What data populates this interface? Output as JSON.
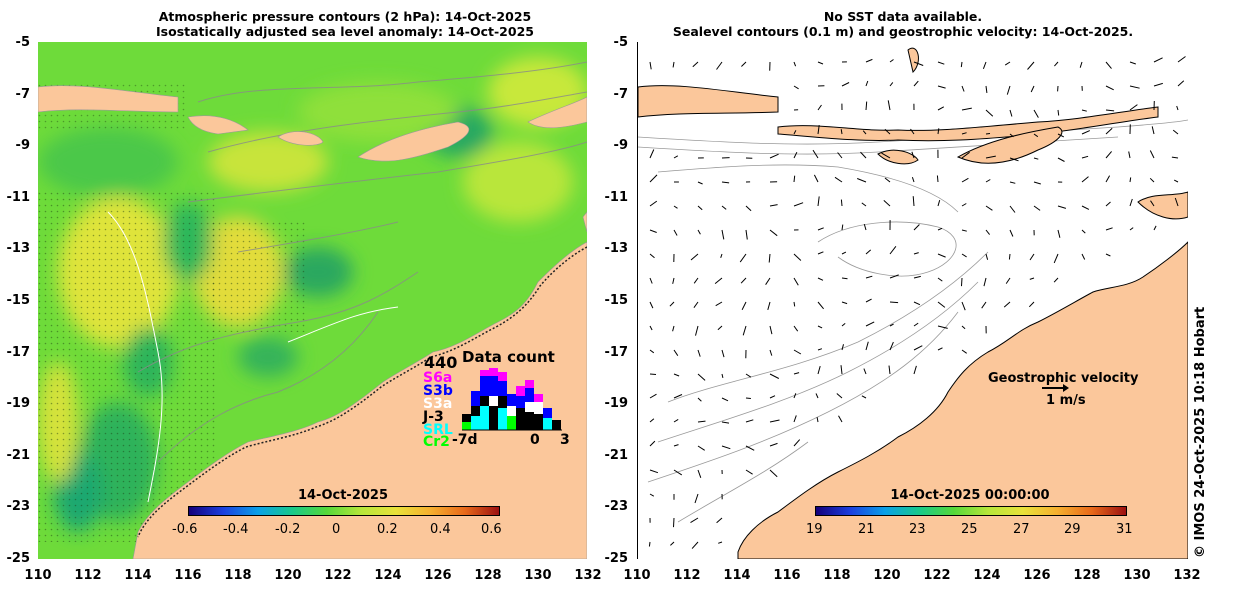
{
  "left_panel": {
    "title_line1": "Atmospheric pressure contours (2 hPa): 14-Oct-2025",
    "title_line2": "Isostatically adjusted sea level anomaly: 14-Oct-2025",
    "colorbar_title": "14-Oct-2025",
    "colorbar_ticks": [
      "-0.6",
      "-0.4",
      "-0.2",
      "0",
      "0.2",
      "0.4",
      "0.6"
    ],
    "data_count": {
      "title": "Data count",
      "max": "440",
      "satellites": [
        "S6a",
        "S3b",
        "S3a",
        "J-3",
        "SRL",
        "Cr2"
      ],
      "satellite_colors": [
        "#ff00ff",
        "#0000ff",
        "#ffffff",
        "#000000",
        "#00ffff",
        "#00ff00"
      ],
      "axis_labels": [
        "-7d",
        "0",
        "3"
      ]
    }
  },
  "right_panel": {
    "title_line1": "No SST data available.",
    "title_line2": "Sealevel contours (0.1 m) and geostrophic velocity: 14-Oct-2025.",
    "colorbar_title": "14-Oct-2025 00:00:00",
    "colorbar_ticks": [
      "19",
      "21",
      "23",
      "25",
      "27",
      "29",
      "31"
    ],
    "velocity_label": "Geostrophic velocity",
    "velocity_scale": "1 m/s"
  },
  "y_ticks": [
    "-5",
    "-7",
    "-9",
    "-11",
    "-13",
    "-15",
    "-17",
    "-19",
    "-21",
    "-23",
    "-25"
  ],
  "x_ticks": [
    "110",
    "112",
    "114",
    "116",
    "118",
    "120",
    "122",
    "124",
    "126",
    "128",
    "130",
    "132"
  ],
  "credit": "© IMOS 24-Oct-2025 10:18 Hobart",
  "colors": {
    "land": "#fbc79b",
    "ocean_base": "#5fd83a",
    "sea_green": "#1fae60",
    "sea_yellow": "#e6e23a"
  }
}
